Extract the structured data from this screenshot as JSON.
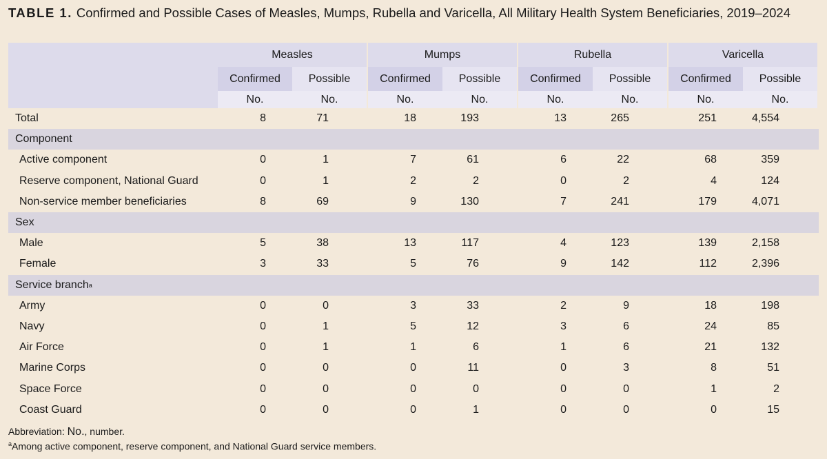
{
  "title": {
    "label": "TABLE 1.",
    "text": "Confirmed and Possible Cases of Measles, Mumps, Rubella and Varicella, All Military Health System Beneficiaries, 2019–2024"
  },
  "table": {
    "groups": [
      {
        "name": "Measles",
        "columns": [
          {
            "name": "Confirmed",
            "unit": "No."
          },
          {
            "name": "Possible",
            "unit": "No."
          }
        ]
      },
      {
        "name": "Mumps",
        "columns": [
          {
            "name": "Confirmed",
            "unit": "No."
          },
          {
            "name": "Possible",
            "unit": "No."
          }
        ]
      },
      {
        "name": "Rubella",
        "columns": [
          {
            "name": "Confirmed",
            "unit": "No."
          },
          {
            "name": "Possible",
            "unit": "No."
          }
        ]
      },
      {
        "name": "Varicella",
        "columns": [
          {
            "name": "Confirmed",
            "unit": "No."
          },
          {
            "name": "Possible",
            "unit": "No."
          }
        ]
      }
    ],
    "rows": [
      {
        "label": "Total",
        "values": [
          8,
          71,
          18,
          193,
          13,
          265,
          251,
          "4,554"
        ]
      },
      {
        "section": "Component"
      },
      {
        "label": "Active component",
        "values": [
          0,
          1,
          7,
          61,
          6,
          22,
          68,
          359
        ]
      },
      {
        "label": "Reserve component, National Guard",
        "values": [
          0,
          1,
          2,
          2,
          0,
          2,
          4,
          124
        ]
      },
      {
        "label": "Non-service member beneficiaries",
        "values": [
          8,
          69,
          9,
          130,
          7,
          241,
          179,
          "4,071"
        ]
      },
      {
        "section": "Sex"
      },
      {
        "label": "Male",
        "values": [
          5,
          38,
          13,
          117,
          4,
          123,
          139,
          "2,158"
        ]
      },
      {
        "label": "Female",
        "values": [
          3,
          33,
          5,
          76,
          9,
          142,
          112,
          "2,396"
        ]
      },
      {
        "section": "Service branch",
        "note_mark": "a"
      },
      {
        "label": "Army",
        "values": [
          0,
          0,
          3,
          33,
          2,
          9,
          18,
          198
        ]
      },
      {
        "label": "Navy",
        "values": [
          0,
          1,
          5,
          12,
          3,
          6,
          24,
          85
        ]
      },
      {
        "label": "Air Force",
        "values": [
          0,
          1,
          1,
          6,
          1,
          6,
          21,
          132
        ]
      },
      {
        "label": "Marine Corps",
        "values": [
          0,
          0,
          0,
          11,
          0,
          3,
          8,
          51
        ]
      },
      {
        "label": "Space Force",
        "values": [
          0,
          0,
          0,
          0,
          0,
          0,
          1,
          2
        ]
      },
      {
        "label": "Coast Guard",
        "values": [
          0,
          0,
          0,
          1,
          0,
          0,
          0,
          15
        ]
      }
    ]
  },
  "footnotes": {
    "abbreviation": {
      "prefix": "Abbreviation:",
      "term": "No.",
      "text": ", number."
    },
    "note": {
      "mark": "a",
      "text": "Among active component, reserve component, and National Guard service members."
    }
  }
}
